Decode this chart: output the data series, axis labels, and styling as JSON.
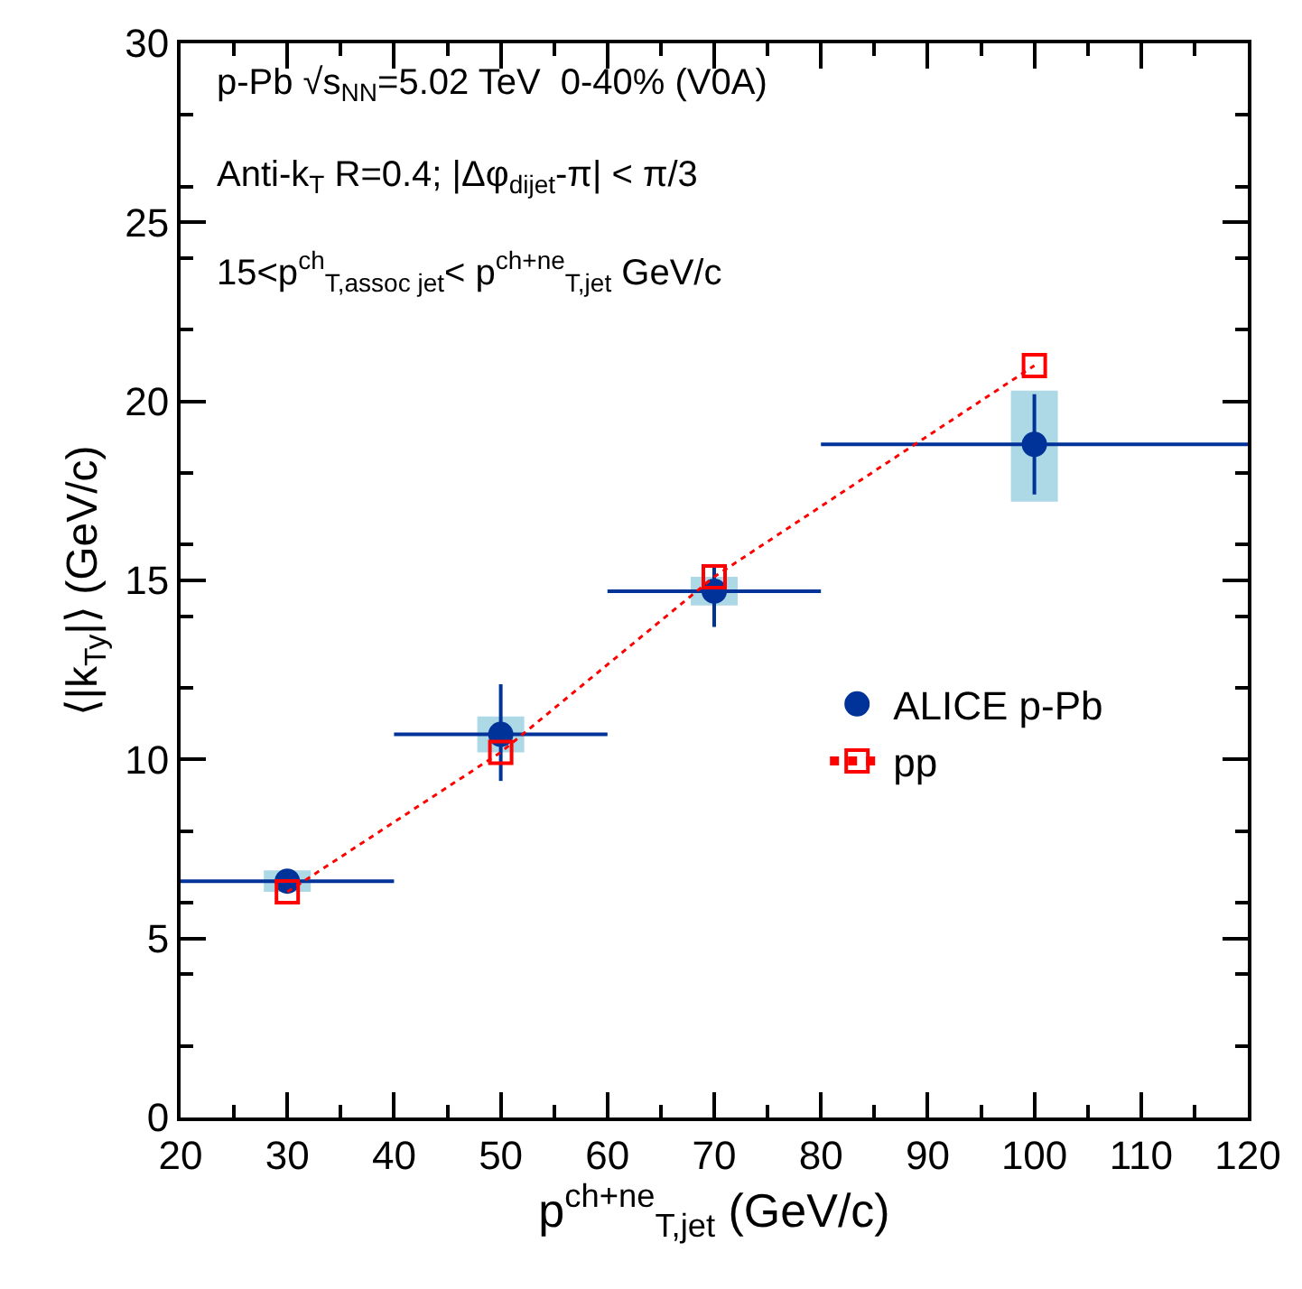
{
  "chart_data": {
    "type": "scatter",
    "xlabel": "p$^{ch+ne}$$_{T,jet}$ (GeV/c)",
    "ylabel": "⟨|k$_{Ty}$|⟩ (GeV/c)",
    "annotations": [
      "p-Pb √s$_{NN}$=5.02 TeV  0-40% (V0A)",
      "Anti-k$_{T}$ R=0.4; |Δφ$_{dijet}$-π| < π/3",
      "15<p$^{ch}$$_{T,assoc jet}$< p$^{ch+ne}$$_{T,jet}$ GeV/c"
    ],
    "x": [
      30,
      50,
      70,
      100
    ],
    "series": [
      {
        "type": "bar",
        "color": "#add8e6",
        "base": [
          6.3,
          10.2,
          14.3,
          17.2
        ],
        "values": [
          0.6,
          1.0,
          0.8,
          3.1
        ]
      },
      {
        "name": "ALICE p-Pb",
        "color": "#003399",
        "marker": "circle",
        "values": [
          6.6,
          10.7,
          14.7,
          18.8
        ],
        "errors": [
          null,
          [
            9.4,
            12.1
          ],
          [
            13.7,
            15.4
          ],
          [
            17.4,
            20.2
          ]
        ],
        "xerrors": [
          [
            20,
            40
          ],
          [
            40,
            60
          ],
          [
            60,
            80
          ],
          [
            80,
            120
          ]
        ]
      },
      {
        "type": "line",
        "name": "pp",
        "color": "#ff0000",
        "marker": "square",
        "line_style": "dotted",
        "values": [
          6.3,
          10.2,
          15.1,
          21.0
        ]
      }
    ],
    "xlim": [
      20,
      120
    ],
    "xticks": [
      20,
      30,
      40,
      50,
      60,
      70,
      80,
      90,
      100,
      110,
      120
    ],
    "ylim": [
      0,
      30
    ],
    "yticks": [
      0,
      5,
      10,
      15,
      20,
      25,
      30
    ],
    "grid": false,
    "legend": "right"
  }
}
